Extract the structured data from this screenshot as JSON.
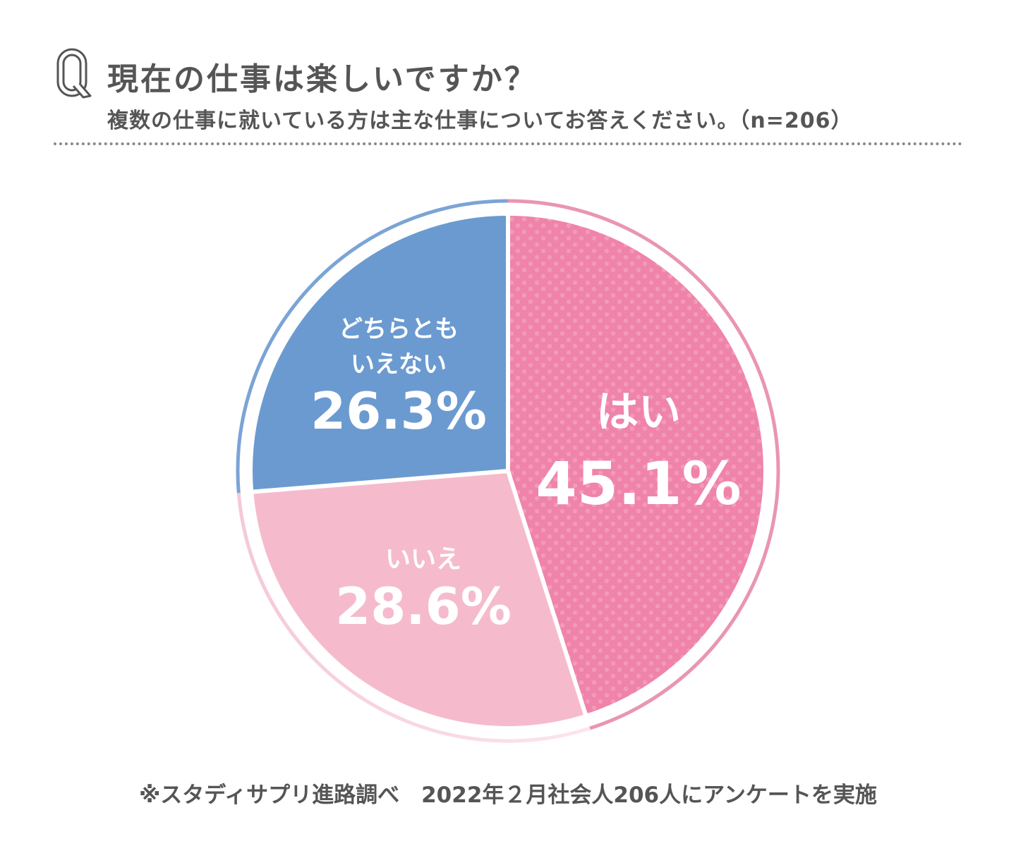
{
  "header": {
    "q_mark": "Q",
    "title": "現在の仕事は楽しいですか？",
    "subtitle": "複数の仕事に就いている方は主な仕事についてお答えください。（n=206）"
  },
  "chart_data": {
    "type": "pie",
    "title": "現在の仕事は楽しいですか？",
    "start": "12 o'clock, clockwise",
    "slices": [
      {
        "label": "はい",
        "value": 45.1,
        "display": "45.1%",
        "color": "#ef83a9",
        "pattern": "dots"
      },
      {
        "label": "いいえ",
        "value": 28.6,
        "display": "28.6%",
        "color": "#f5bbcd"
      },
      {
        "label": "どちらともいえない",
        "label_lines": [
          "どちらとも",
          "いえない"
        ],
        "value": 26.3,
        "display": "26.3%",
        "color": "#6b9ad0"
      }
    ]
  },
  "footer": {
    "source": "※スタディサプリ進路調べ　2022年２月社会人206人にアンケートを実施"
  }
}
